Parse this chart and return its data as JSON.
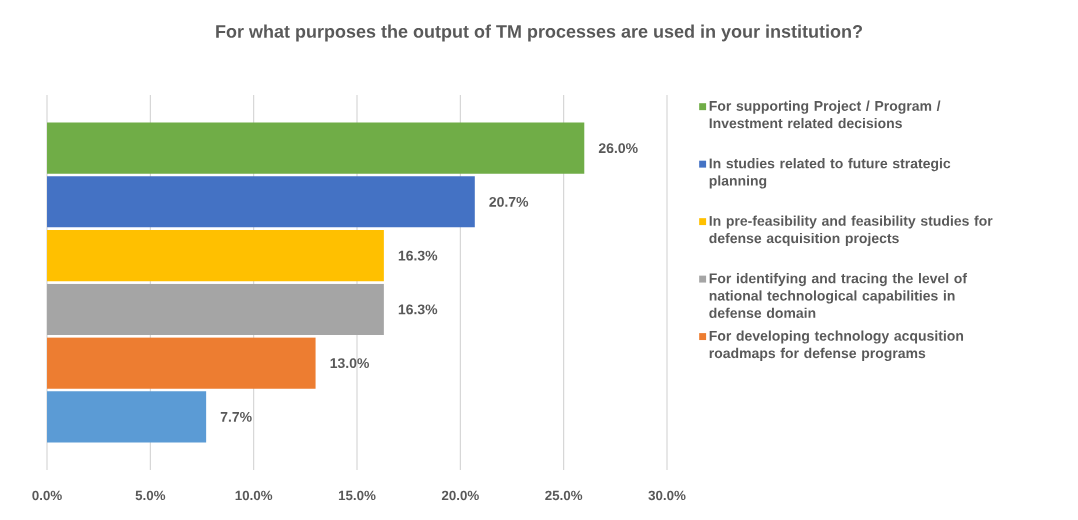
{
  "chart_data": {
    "type": "bar",
    "orientation": "horizontal",
    "title": "For what purposes the output of TM processes are used in your institution?",
    "categories": [
      null
    ],
    "series": [
      {
        "name": "For supporting Project / Program / Investment related decisions",
        "color": "#70ad47",
        "values": [
          26.0
        ],
        "value_labels": [
          "26.0%"
        ]
      },
      {
        "name": "In studies related to future strategic planning",
        "color": "#4472c4",
        "values": [
          20.7
        ],
        "value_labels": [
          "20.7%"
        ]
      },
      {
        "name": "In pre-feasibility and feasibility studies for defense acquisition projects",
        "color": "#ffc000",
        "values": [
          16.3
        ],
        "value_labels": [
          "16.3%"
        ]
      },
      {
        "name": "For identifying and tracing the level of national technological capabilities in defense domain",
        "color": "#a5a5a5",
        "values": [
          16.3
        ],
        "value_labels": [
          "16.3%"
        ]
      },
      {
        "name": "For developing technology acqusition roadmaps for defense programs",
        "color": "#ed7d31",
        "values": [
          13.0
        ],
        "value_labels": [
          "13.0%"
        ]
      },
      {
        "color": "#5b9bd5",
        "values": [
          7.7
        ],
        "value_labels": [
          "7.7%"
        ]
      }
    ],
    "xlim": [
      0,
      30
    ],
    "xticks": [
      {
        "value": 0,
        "label": "0.0%"
      },
      {
        "value": 5,
        "label": "5.0%"
      },
      {
        "value": 10,
        "label": "10.0%"
      },
      {
        "value": 15,
        "label": "15.0%"
      },
      {
        "value": 20,
        "label": "20.0%"
      },
      {
        "value": 25,
        "label": "25.0%"
      },
      {
        "value": 30,
        "label": "30.0%"
      }
    ],
    "grid": "x",
    "legend": "right"
  }
}
